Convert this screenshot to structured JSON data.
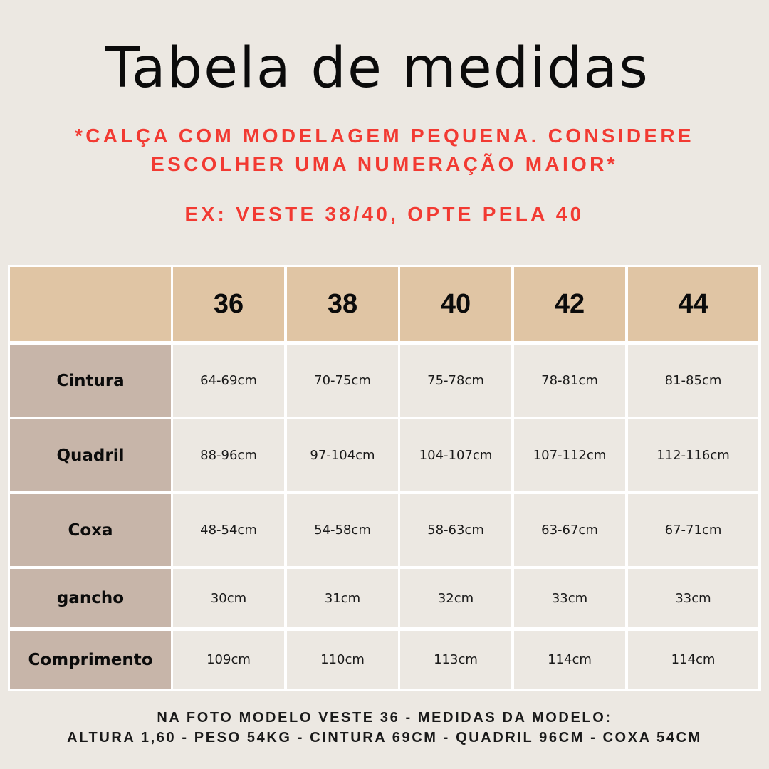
{
  "title": "Tabela de medidas",
  "warning_line1": "*CALÇA COM MODELAGEM PEQUENA. CONSIDERE",
  "warning_line2": "ESCOLHER UMA NUMERAÇÃO MAIOR*",
  "example": "EX: VESTE 38/40, OPTE PELA 40",
  "table": {
    "sizes": [
      "36",
      "38",
      "40",
      "42",
      "44"
    ],
    "rows": [
      {
        "label": "Cintura",
        "values": [
          "64-69cm",
          "70-75cm",
          "75-78cm",
          "78-81cm",
          "81-85cm"
        ]
      },
      {
        "label": "Quadril",
        "values": [
          "88-96cm",
          "97-104cm",
          "104-107cm",
          "107-112cm",
          "112-116cm"
        ]
      },
      {
        "label": "Coxa",
        "values": [
          "48-54cm",
          "54-58cm",
          "58-63cm",
          "63-67cm",
          "67-71cm"
        ]
      },
      {
        "label": "gancho",
        "values": [
          "30cm",
          "31cm",
          "32cm",
          "33cm",
          "33cm"
        ]
      },
      {
        "label": "Comprimento",
        "values": [
          "109cm",
          "110cm",
          "113cm",
          "114cm",
          "114cm"
        ]
      }
    ]
  },
  "footer_line1": "NA FOTO MODELO VESTE 36 - MEDIDAS DA MODELO:",
  "footer_line2": "ALTURA 1,60 - PESO 54KG - CINTURA 69CM - QUADRIL 96CM - COXA 54CM",
  "colors": {
    "background": "#ece8e2",
    "warning": "#f23a32",
    "header_fill": "#e0c5a4",
    "label_fill": "#c7b5a9"
  }
}
